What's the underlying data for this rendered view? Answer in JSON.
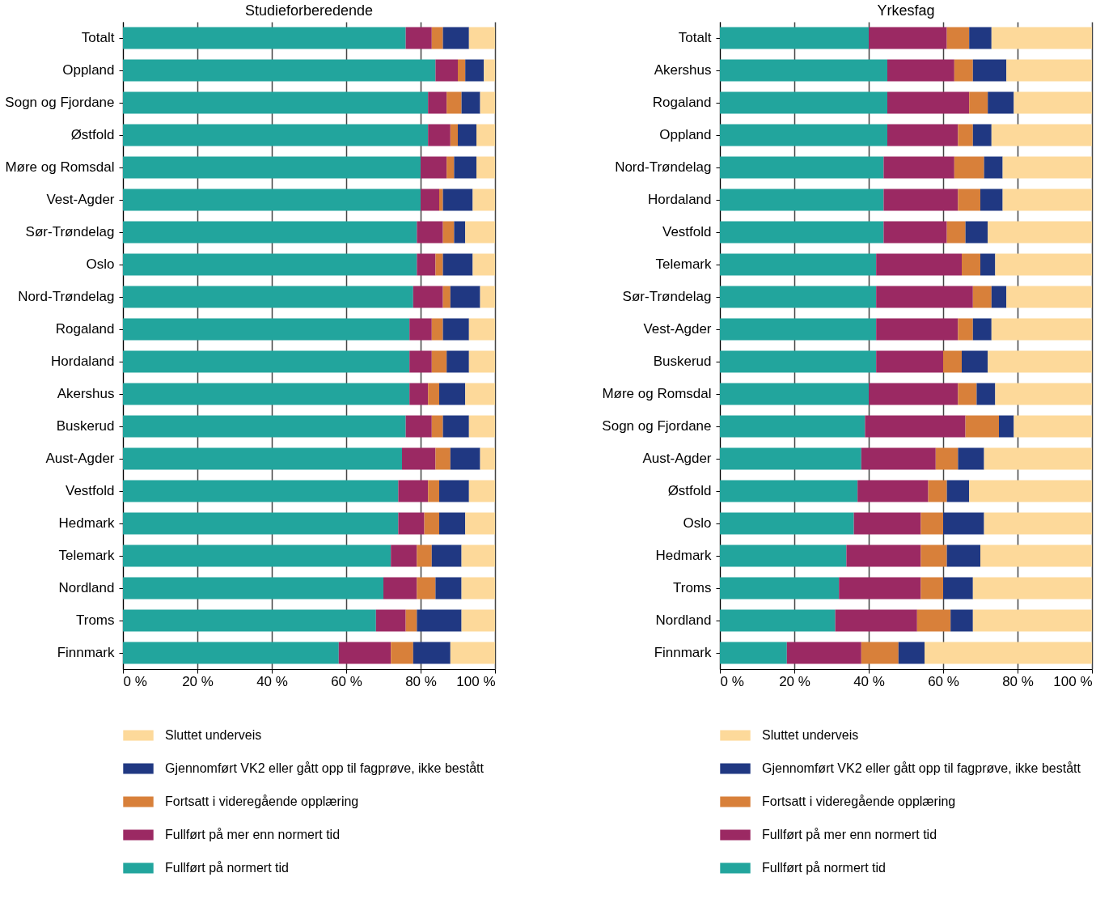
{
  "chart_data": [
    {
      "type": "bar",
      "orientation": "horizontal",
      "stacked": true,
      "title": "Studieforberedende",
      "categories": [
        "Totalt",
        "Oppland",
        "Sogn og Fjordane",
        "Østfold",
        "Møre og Romsdal",
        "Vest-Agder",
        "Sør-Trøndelag",
        "Oslo",
        "Nord-Trøndelag",
        "Rogaland",
        "Hordaland",
        "Akershus",
        "Buskerud",
        "Aust-Agder",
        "Vestfold",
        "Hedmark",
        "Telemark",
        "Nordland",
        "Troms",
        "Finnmark"
      ],
      "series": [
        {
          "name": "Fullført på normert tid",
          "color": "#22a59d",
          "values": [
            76,
            84,
            82,
            82,
            80,
            80,
            79,
            79,
            78,
            77,
            77,
            77,
            76,
            75,
            74,
            74,
            72,
            70,
            68,
            58
          ]
        },
        {
          "name": "Fullført på mer enn normert tid",
          "color": "#9b2963",
          "values": [
            7,
            6,
            5,
            6,
            7,
            5,
            7,
            5,
            8,
            6,
            6,
            5,
            7,
            9,
            8,
            7,
            7,
            9,
            8,
            14
          ]
        },
        {
          "name": "Fortsatt i videregående opplæring",
          "color": "#d8803a",
          "values": [
            3,
            2,
            4,
            2,
            2,
            1,
            3,
            2,
            2,
            3,
            4,
            3,
            3,
            4,
            3,
            4,
            4,
            5,
            3,
            6
          ]
        },
        {
          "name": "Gjennomført VK2 eller gått opp til fagprøve, ikke bestått",
          "color": "#203882",
          "values": [
            7,
            5,
            5,
            5,
            6,
            8,
            3,
            8,
            8,
            7,
            6,
            7,
            7,
            8,
            8,
            7,
            8,
            7,
            12,
            10
          ]
        },
        {
          "name": "Sluttet underveis",
          "color": "#fdd99a",
          "values": [
            7,
            3,
            4,
            5,
            5,
            6,
            8,
            6,
            4,
            7,
            7,
            8,
            7,
            4,
            7,
            8,
            9,
            9,
            9,
            12
          ]
        }
      ],
      "xlim": [
        0,
        100
      ],
      "xticks": [
        {
          "value": 0,
          "label": "0 %"
        },
        {
          "value": 20,
          "label": "20 %"
        },
        {
          "value": 40,
          "label": "40 %"
        },
        {
          "value": 60,
          "label": "60 %"
        },
        {
          "value": 80,
          "label": "80 %"
        },
        {
          "value": 100,
          "label": "100 %"
        }
      ],
      "grid": "x",
      "legend": "bottom"
    },
    {
      "type": "bar",
      "orientation": "horizontal",
      "stacked": true,
      "title": "Yrkesfag",
      "categories": [
        "Totalt",
        "Akershus",
        "Rogaland",
        "Oppland",
        "Nord-Trøndelag",
        "Hordaland",
        "Vestfold",
        "Telemark",
        "Sør-Trøndelag",
        "Vest-Agder",
        "Buskerud",
        "Møre og Romsdal",
        "Sogn og Fjordane",
        "Aust-Agder",
        "Østfold",
        "Oslo",
        "Hedmark",
        "Troms",
        "Nordland",
        "Finnmark"
      ],
      "series": [
        {
          "name": "Fullført på normert tid",
          "color": "#22a59d",
          "values": [
            40,
            45,
            45,
            45,
            44,
            44,
            44,
            42,
            42,
            42,
            42,
            40,
            39,
            38,
            37,
            36,
            34,
            32,
            31,
            18
          ]
        },
        {
          "name": "Fullført på mer enn normert tid",
          "color": "#9b2963",
          "values": [
            21,
            18,
            22,
            19,
            19,
            20,
            17,
            23,
            26,
            22,
            18,
            24,
            27,
            20,
            19,
            18,
            20,
            22,
            22,
            20
          ]
        },
        {
          "name": "Fortsatt i videregående opplæring",
          "color": "#d8803a",
          "values": [
            6,
            5,
            5,
            4,
            8,
            6,
            5,
            5,
            5,
            4,
            5,
            5,
            9,
            6,
            5,
            6,
            7,
            6,
            9,
            10
          ]
        },
        {
          "name": "Gjennomført VK2 eller gått opp til fagprøve, ikke bestått",
          "color": "#203882",
          "values": [
            6,
            9,
            7,
            5,
            5,
            6,
            6,
            4,
            4,
            5,
            7,
            5,
            4,
            7,
            6,
            11,
            9,
            8,
            6,
            7
          ]
        },
        {
          "name": "Sluttet underveis",
          "color": "#fdd99a",
          "values": [
            27,
            23,
            21,
            27,
            24,
            24,
            28,
            26,
            23,
            27,
            28,
            26,
            21,
            29,
            33,
            29,
            30,
            32,
            32,
            45
          ]
        }
      ],
      "xlim": [
        0,
        100
      ],
      "xticks": [
        {
          "value": 0,
          "label": "0 %"
        },
        {
          "value": 20,
          "label": "20 %"
        },
        {
          "value": 40,
          "label": "40 %"
        },
        {
          "value": 60,
          "label": "60 %"
        },
        {
          "value": 80,
          "label": "80 %"
        },
        {
          "value": 100,
          "label": "100 %"
        }
      ],
      "grid": "x",
      "legend": "bottom"
    }
  ]
}
